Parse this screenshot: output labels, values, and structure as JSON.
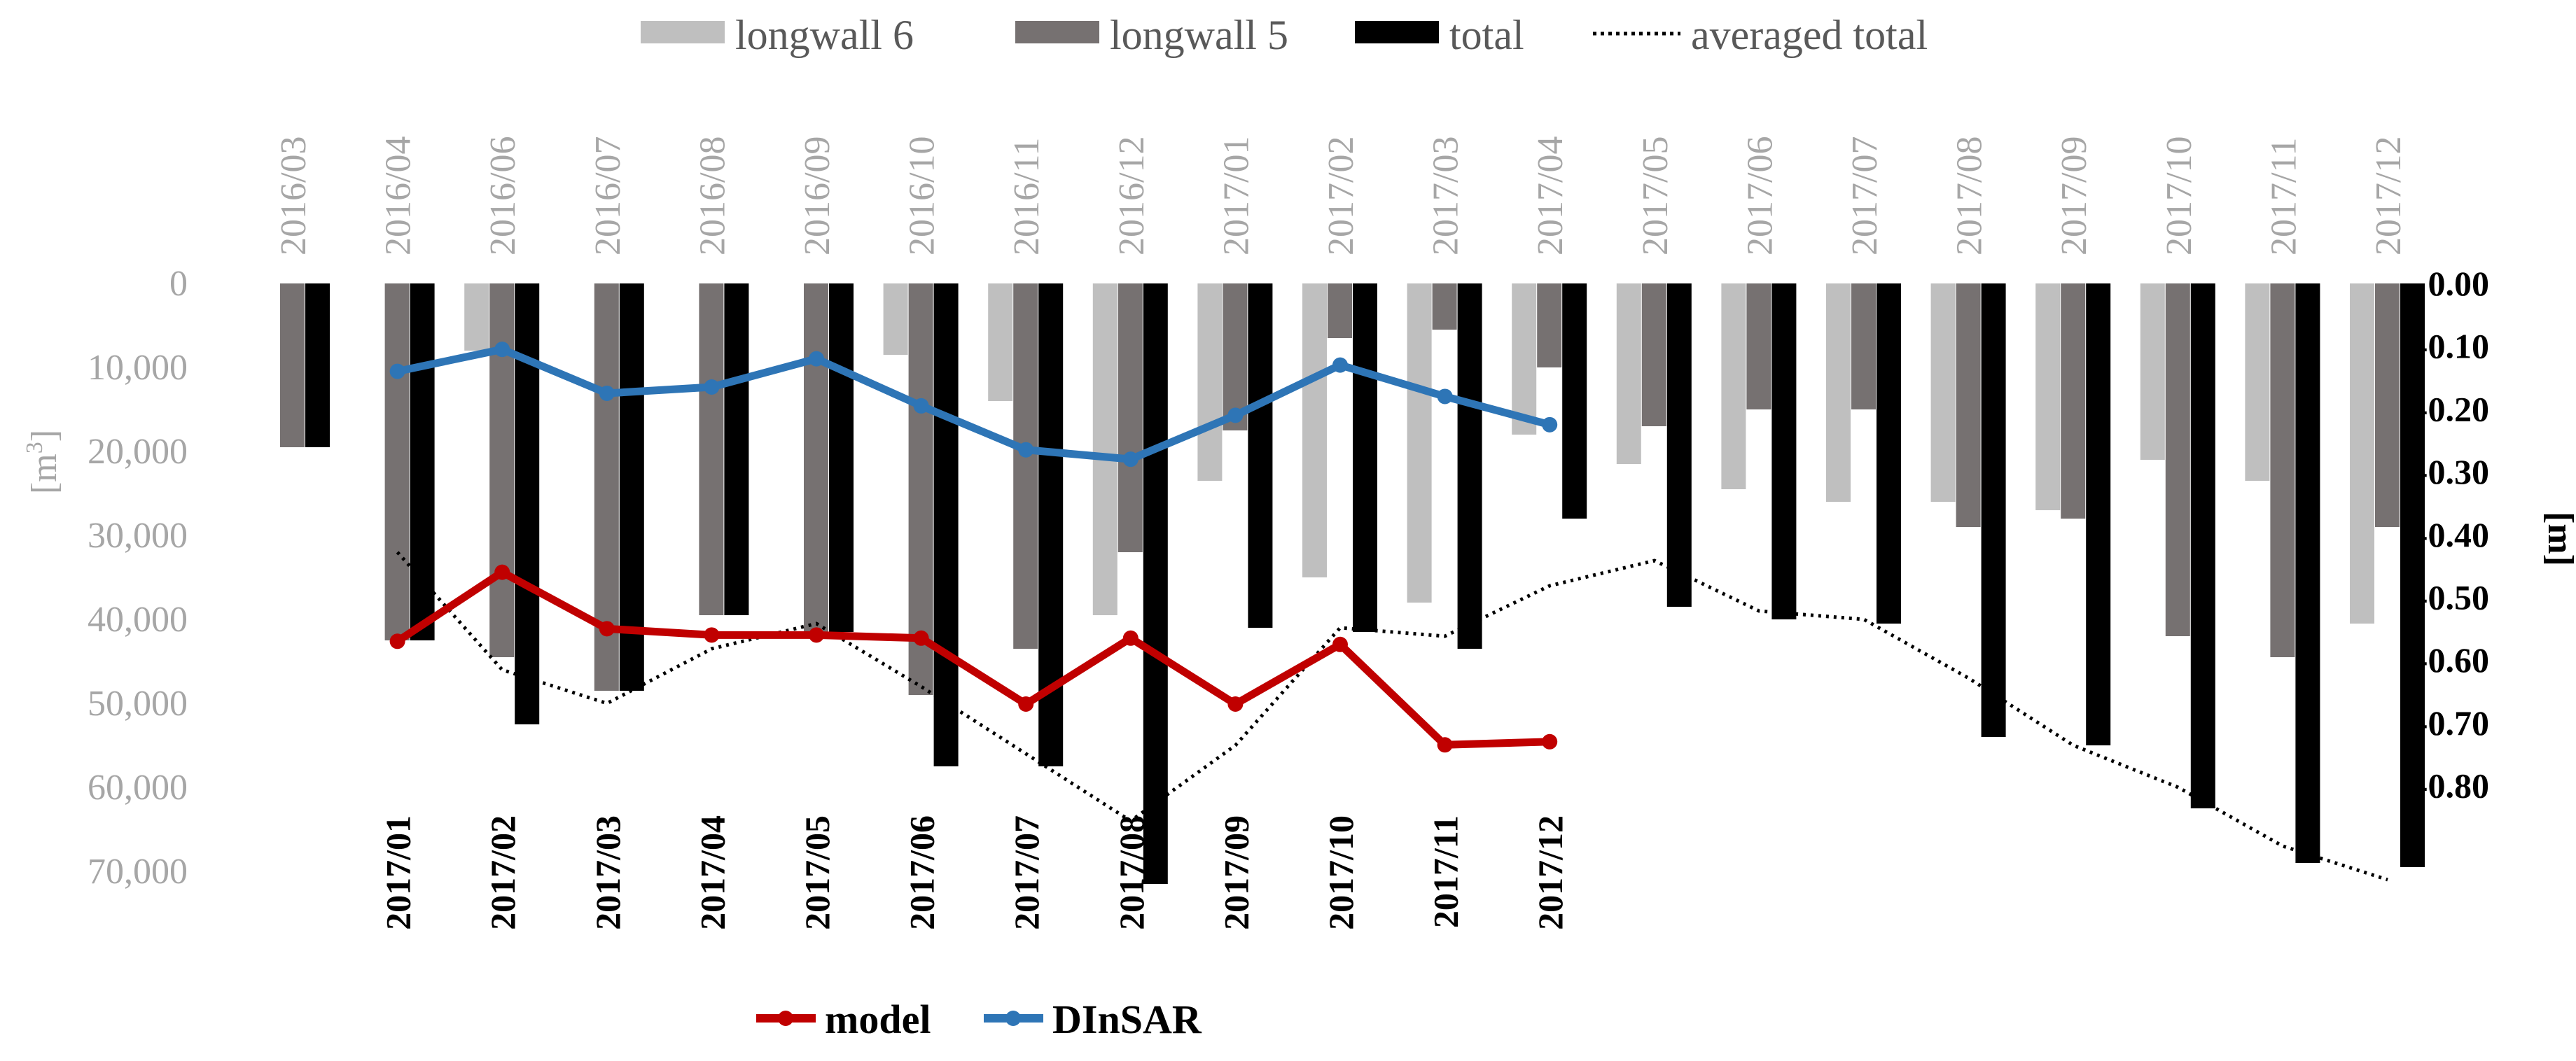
{
  "chart_data": [
    {
      "type": "bar",
      "title": "",
      "ylabel": "[m3]",
      "ylabel_main": "[m",
      "ylabel_sup": "3",
      "ylabel_close": "]",
      "ylim": [
        0,
        70000
      ],
      "yticks": [
        0,
        10000,
        20000,
        30000,
        40000,
        50000,
        60000,
        70000
      ],
      "ytick_labels": [
        "0",
        "10,000",
        "20,000",
        "30,000",
        "40,000",
        "50,000",
        "60,000",
        "70,000"
      ],
      "y_inverted": true,
      "categories": [
        "2016/03",
        "2016/04",
        "2016/06",
        "2016/07",
        "2016/08",
        "2016/09",
        "2016/10",
        "2016/11",
        "2016/12",
        "2017/01",
        "2017/02",
        "2017/03",
        "2017/04",
        "2017/05",
        "2017/06",
        "2017/07",
        "2017/08",
        "2017/09",
        "2017/10",
        "2017/11",
        "2017/12"
      ],
      "series": [
        {
          "name": "longwall 6",
          "color": "#bfbfbf",
          "values": [
            0,
            0,
            8000,
            0,
            0,
            0,
            8500,
            14000,
            39500,
            23500,
            35000,
            38000,
            18000,
            21500,
            24500,
            26000,
            26000,
            27000,
            21000,
            23500,
            40500
          ]
        },
        {
          "name": "longwall 5",
          "color": "#767171",
          "values": [
            19500,
            42500,
            44500,
            48500,
            39500,
            41500,
            49000,
            43500,
            32000,
            17500,
            6500,
            5500,
            10000,
            17000,
            15000,
            15000,
            29000,
            28000,
            42000,
            44500,
            29000
          ]
        },
        {
          "name": "total",
          "color": "#000000",
          "values": [
            19500,
            42500,
            52500,
            48500,
            39500,
            41500,
            57500,
            57500,
            71500,
            41000,
            41500,
            43500,
            28000,
            38500,
            40000,
            40500,
            54000,
            55000,
            62500,
            69000,
            69500
          ]
        },
        {
          "name": "averaged total",
          "color": "#000000",
          "style": "dotted",
          "values": [
            null,
            32000,
            46000,
            50000,
            43500,
            40500,
            48000,
            56000,
            64000,
            55000,
            41000,
            42000,
            36000,
            33000,
            39000,
            40000,
            47000,
            55000,
            60000,
            67000,
            71000
          ]
        }
      ]
    },
    {
      "type": "line",
      "ylabel": "[m]",
      "ylim": [
        -0.8,
        0
      ],
      "yticks": [
        0,
        -0.1,
        -0.2,
        -0.3,
        -0.4,
        -0.5,
        -0.6,
        -0.7,
        -0.8
      ],
      "ytick_labels": [
        "0.00",
        "-0.10",
        "-0.20",
        "-0.30",
        "-0.40",
        "-0.50",
        "-0.60",
        "-0.70",
        "-0.80"
      ],
      "categories": [
        "2017/01",
        "2017/02",
        "2017/03",
        "2017/04",
        "2017/05",
        "2017/06",
        "2017/07",
        "2017/08",
        "2017/09",
        "2017/10",
        "2017/11",
        "2017/12"
      ],
      "series": [
        {
          "name": "model",
          "color": "#c00000",
          "values": [
            -0.57,
            -0.46,
            -0.55,
            -0.56,
            -0.56,
            -0.565,
            -0.67,
            -0.565,
            -0.67,
            -0.575,
            -0.735,
            -0.73
          ]
        },
        {
          "name": "DInSAR",
          "color": "#2e75b6",
          "values": [
            -0.14,
            -0.105,
            -0.175,
            -0.165,
            -0.12,
            -0.195,
            -0.265,
            -0.28,
            -0.21,
            -0.13,
            -0.18,
            -0.225
          ]
        }
      ]
    }
  ]
}
